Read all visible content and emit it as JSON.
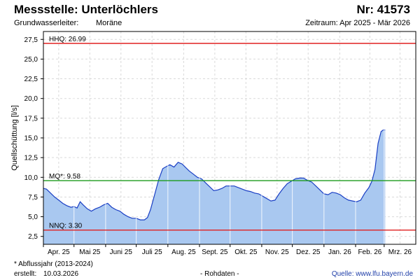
{
  "header": {
    "title": "Messstelle: Unterlöchlers",
    "station_no": "Nr: 41573",
    "aquifer_label": "Grundwasserleiter:",
    "aquifer_value": "Moräne",
    "period": "Zeitraum: Apr 2025 - Mär 2026"
  },
  "footer": {
    "footnote": "* Abflussjahr (2013-2024)",
    "created_label": "erstellt:",
    "created_date": "10.03.2026",
    "raw_data": "- Rohdaten -",
    "source": "Quelle: www.lfu.bayern.de"
  },
  "colors": {
    "fill": "#a9c8f0",
    "line": "#1a3fc4",
    "hhq": "#e02020",
    "mq": "#1a9a1a",
    "nnq": "#e02020",
    "grid": "#d9d9d9",
    "month_grid": "#ffffff"
  },
  "chart_data": {
    "type": "area",
    "title": "Messstelle: Unterlöchlers",
    "ylabel": "Quellschüttung [l/s]",
    "xlabel": "",
    "ylim": [
      1.5,
      28.5
    ],
    "yticks": [
      2.5,
      5.0,
      7.5,
      10.0,
      12.5,
      15.0,
      17.5,
      20.0,
      22.5,
      25.0,
      27.5
    ],
    "ytick_labels": [
      "2,5",
      "5,0",
      "7,5",
      "10,0",
      "12,5",
      "15,0",
      "17,5",
      "20,0",
      "22,5",
      "25,0",
      "27,5"
    ],
    "xlim": [
      "2025-04-01",
      "2026-04-01"
    ],
    "month_labels": [
      "Apr. 25",
      "Mai 25",
      "Juni 25",
      "Juli 25",
      "Aug. 25",
      "Sept. 25",
      "Okt. 25",
      "Nov. 25",
      "Dez. 25",
      "Jan. 26",
      "Feb. 26",
      "Mrz. 26"
    ],
    "month_starts": [
      "2025-04-01",
      "2025-05-01",
      "2025-06-01",
      "2025-07-01",
      "2025-08-01",
      "2025-09-01",
      "2025-10-01",
      "2025-11-01",
      "2025-12-01",
      "2026-01-01",
      "2026-02-01",
      "2026-03-01"
    ],
    "grid": true,
    "reference_lines": [
      {
        "label": "HHQ: 26.99",
        "value": 26.99
      },
      {
        "label": "MQ*: 9.58",
        "value": 9.58
      },
      {
        "label": "NNQ: 3.30",
        "value": 3.3
      }
    ],
    "series": [
      {
        "x": [
          "2025-04-01",
          "2025-04-04",
          "2025-04-08",
          "2025-04-12",
          "2025-04-16",
          "2025-04-20",
          "2025-04-24",
          "2025-04-28",
          "2025-05-01",
          "2025-05-04",
          "2025-05-07",
          "2025-05-10",
          "2025-05-14",
          "2025-05-18",
          "2025-05-22",
          "2025-05-26",
          "2025-05-30",
          "2025-06-03",
          "2025-06-07",
          "2025-06-11",
          "2025-06-15",
          "2025-06-19",
          "2025-06-23",
          "2025-06-27",
          "2025-07-01",
          "2025-07-05",
          "2025-07-09",
          "2025-07-12",
          "2025-07-15",
          "2025-07-19",
          "2025-07-23",
          "2025-07-27",
          "2025-07-31",
          "2025-08-03",
          "2025-08-07",
          "2025-08-11",
          "2025-08-15",
          "2025-08-18",
          "2025-08-22",
          "2025-08-26",
          "2025-08-30",
          "2025-09-03",
          "2025-09-07",
          "2025-09-11",
          "2025-09-15",
          "2025-09-19",
          "2025-09-23",
          "2025-09-27",
          "2025-10-01",
          "2025-10-05",
          "2025-10-09",
          "2025-10-13",
          "2025-10-17",
          "2025-10-21",
          "2025-10-25",
          "2025-10-29",
          "2025-11-02",
          "2025-11-06",
          "2025-11-10",
          "2025-11-14",
          "2025-11-18",
          "2025-11-22",
          "2025-11-26",
          "2025-11-30",
          "2025-12-04",
          "2025-12-08",
          "2025-12-12",
          "2025-12-16",
          "2025-12-20",
          "2025-12-24",
          "2025-12-28",
          "2026-01-01",
          "2026-01-05",
          "2026-01-09",
          "2026-01-13",
          "2026-01-17",
          "2026-01-21",
          "2026-01-25",
          "2026-01-29",
          "2026-02-02",
          "2026-02-06",
          "2026-02-10",
          "2026-02-14",
          "2026-02-17",
          "2026-02-20",
          "2026-02-23",
          "2026-02-26",
          "2026-02-28",
          "2026-03-02",
          "2026-03-04",
          "2026-03-06",
          "2026-03-08",
          "2026-03-09"
        ],
        "values": [
          8.6,
          8.5,
          8.0,
          7.5,
          7.1,
          6.7,
          6.4,
          6.2,
          6.3,
          6.1,
          6.9,
          6.5,
          6.0,
          5.7,
          6.0,
          6.2,
          6.5,
          6.7,
          6.2,
          5.9,
          5.7,
          5.3,
          5.0,
          4.8,
          4.8,
          4.6,
          4.6,
          4.9,
          5.9,
          7.8,
          9.7,
          11.1,
          11.4,
          11.6,
          11.3,
          11.9,
          11.7,
          11.3,
          10.8,
          10.4,
          10.0,
          9.8,
          9.3,
          8.8,
          8.3,
          8.4,
          8.6,
          8.9,
          8.9,
          8.9,
          8.7,
          8.5,
          8.3,
          8.2,
          8.0,
          7.9,
          7.6,
          7.3,
          7.0,
          7.1,
          7.9,
          8.6,
          9.2,
          9.5,
          9.8,
          9.9,
          9.9,
          9.6,
          9.4,
          8.9,
          8.4,
          7.9,
          7.8,
          8.1,
          8.0,
          7.8,
          7.4,
          7.1,
          7.0,
          6.9,
          7.1,
          8.0,
          8.7,
          9.5,
          11.0,
          14.3,
          15.8,
          16.0,
          16.0,
          null,
          null,
          null,
          null
        ]
      }
    ]
  }
}
